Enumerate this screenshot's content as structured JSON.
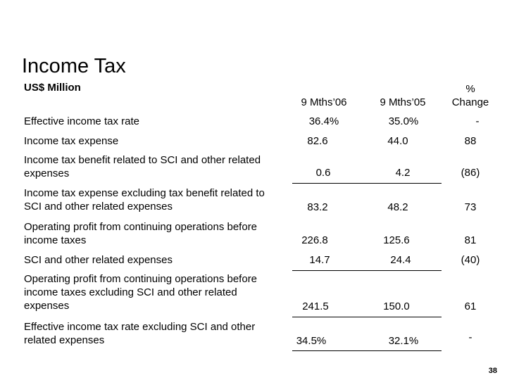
{
  "slide": {
    "title": "Income Tax",
    "subtitle": "US$ Million",
    "page_number": "38"
  },
  "columns": {
    "col1": "9 Mths’06",
    "col2": "9 Mths’05",
    "col3_line1": "%",
    "col3_line2": "Change"
  },
  "rows": [
    {
      "label": "Effective income tax rate",
      "v1": "36.4%",
      "v2": "35.0%",
      "v3": "-"
    },
    {
      "label": "Income tax expense",
      "v1": "82.6",
      "v2": "44.0",
      "v3": "88"
    },
    {
      "label": "Income tax benefit related to SCI and other related expenses",
      "v1": "0.6",
      "v2": "4.2",
      "v3": "(86)"
    },
    {
      "label": "Income tax expense excluding tax benefit related to SCI and other related expenses",
      "v1": "83.2",
      "v2": "48.2",
      "v3": "73"
    },
    {
      "label": "Operating profit from continuing operations before income taxes",
      "v1": "226.8",
      "v2": "125.6",
      "v3": "81"
    },
    {
      "label": "SCI and other related expenses",
      "v1": "14.7",
      "v2": "24.4",
      "v3": "(40)"
    },
    {
      "label": "Operating profit from continuing operations before income taxes excluding SCI and other related expenses",
      "v1": "241.5",
      "v2": "150.0",
      "v3": "61"
    },
    {
      "label": "Effective income tax rate excluding SCI and other related expenses",
      "v1": "34.5%",
      "v2": "32.1%",
      "v3": "-"
    }
  ]
}
